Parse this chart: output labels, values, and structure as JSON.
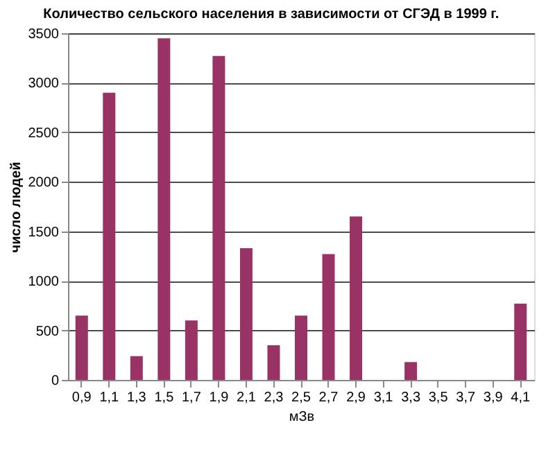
{
  "chart_data": {
    "type": "bar",
    "title": "Количество сельского населения в зависимости от СГЭД в 1999 г.",
    "xlabel": "мЗв",
    "ylabel": "число людей",
    "categories": [
      "0,9",
      "1,1",
      "1,3",
      "1,5",
      "1,7",
      "1,9",
      "2,1",
      "2,3",
      "2,5",
      "2,7",
      "2,9",
      "3,1",
      "3,3",
      "3,5",
      "3,7",
      "3,9",
      "4,1"
    ],
    "values": [
      650,
      2900,
      240,
      3450,
      600,
      3270,
      1330,
      350,
      650,
      1270,
      1650,
      0,
      180,
      0,
      0,
      0,
      770
    ],
    "color": "#993366",
    "ylim": [
      0,
      3500
    ],
    "yticks": [
      0,
      500,
      1000,
      1500,
      2000,
      2500,
      3000,
      3500
    ],
    "grid": "y"
  }
}
